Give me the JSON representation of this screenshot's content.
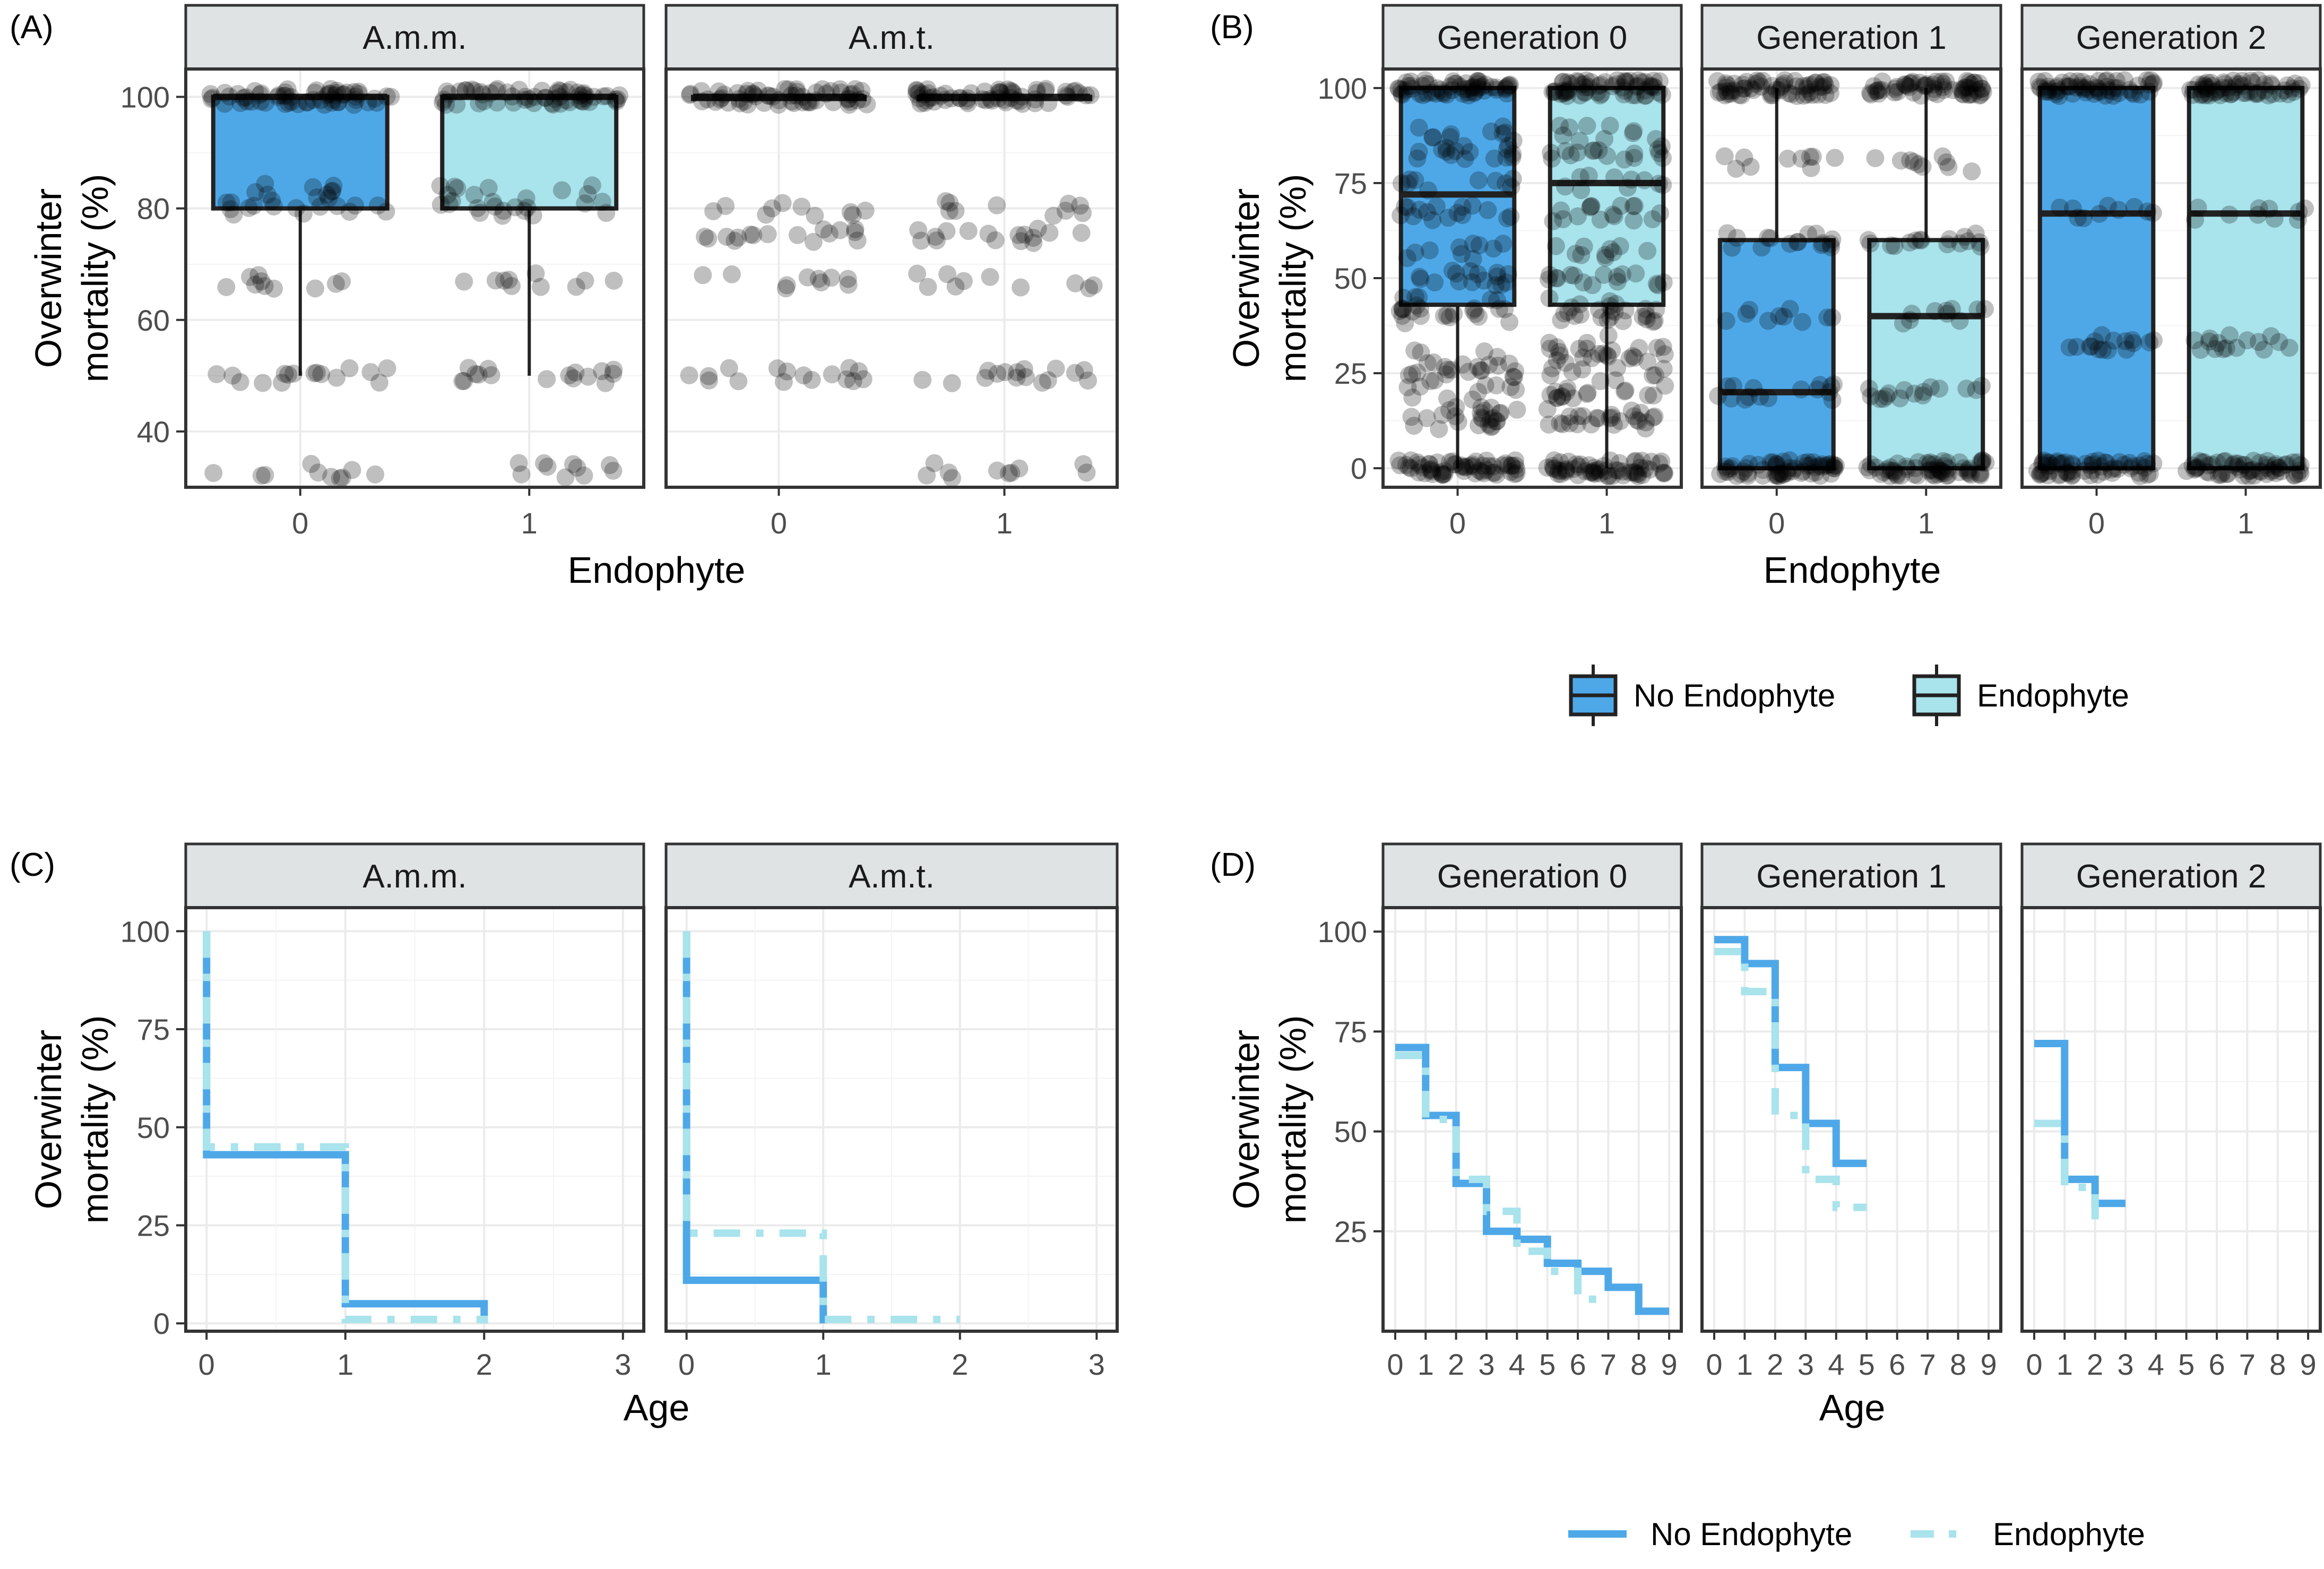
{
  "colors": {
    "no_endophyte": "#4EA8E8",
    "endophyte": "#A9E3EC",
    "strip_bg": "#DFE3E3",
    "points": "#000000",
    "grid": "#EBEBEB"
  },
  "legend": {
    "no_endophyte": "No Endophyte",
    "endophyte": "Endophyte"
  },
  "chart_data": [
    {
      "panel": "(A)",
      "type": "box",
      "xlabel": "Endophyte",
      "ylabel": "Overwinter mortality (%)",
      "ylim": [
        30,
        105
      ],
      "yticks": [
        40,
        60,
        80,
        100
      ],
      "categories": [
        "0",
        "1"
      ],
      "facets": [
        {
          "label": "A.m.m.",
          "boxes": [
            {
              "x": "0",
              "min": 50,
              "q1": 80,
              "median": 100,
              "q3": 100,
              "max": 100
            },
            {
              "x": "1",
              "min": 50,
              "q1": 80,
              "median": 100,
              "q3": 100,
              "max": 100
            }
          ],
          "point_levels": [
            {
              "x": "0",
              "levels": [
                100,
                83,
                80,
                67,
                50,
                33
              ]
            },
            {
              "x": "1",
              "levels": [
                100,
                83,
                80,
                67,
                50,
                33
              ]
            }
          ]
        },
        {
          "label": "A.m.t.",
          "boxes": [
            {
              "x": "0",
              "min": 100,
              "q1": 100,
              "median": 100,
              "q3": 100,
              "max": 100
            },
            {
              "x": "1",
              "min": 100,
              "q1": 100,
              "median": 100,
              "q3": 100,
              "max": 100
            }
          ],
          "point_levels": [
            {
              "x": "0",
              "levels": [
                100,
                80,
                75,
                67,
                50
              ]
            },
            {
              "x": "1",
              "levels": [
                100,
                80,
                75,
                67,
                50,
                33
              ]
            }
          ]
        }
      ]
    },
    {
      "panel": "(B)",
      "type": "box",
      "xlabel": "Endophyte",
      "ylabel": "Overwinter mortality (%)",
      "ylim": [
        -5,
        105
      ],
      "yticks": [
        0,
        25,
        50,
        75,
        100
      ],
      "categories": [
        "0",
        "1"
      ],
      "facets": [
        {
          "label": "Generation 0",
          "boxes": [
            {
              "x": "0",
              "min": 0,
              "q1": 43,
              "median": 72,
              "q3": 100,
              "max": 100
            },
            {
              "x": "1",
              "min": 0,
              "q1": 43,
              "median": 75,
              "q3": 100,
              "max": 100
            }
          ],
          "point_levels": [
            {
              "x": "0",
              "levels": [
                100,
                88,
                83,
                75,
                67,
                57,
                50,
                43,
                40,
                29,
                25,
                20,
                14,
                12,
                0
              ]
            },
            {
              "x": "1",
              "levels": [
                100,
                88,
                83,
                75,
                67,
                57,
                50,
                43,
                40,
                33,
                29,
                25,
                20,
                14,
                12,
                0
              ]
            }
          ]
        },
        {
          "label": "Generation 1",
          "boxes": [
            {
              "x": "0",
              "min": 0,
              "q1": 0,
              "median": 20,
              "q3": 60,
              "max": 100
            },
            {
              "x": "1",
              "min": 0,
              "q1": 0,
              "median": 40,
              "q3": 60,
              "max": 100
            }
          ],
          "point_levels": [
            {
              "x": "0",
              "levels": [
                100,
                80,
                60,
                40,
                20,
                0
              ]
            },
            {
              "x": "1",
              "levels": [
                100,
                80,
                60,
                40,
                20,
                0
              ]
            }
          ]
        },
        {
          "label": "Generation 2",
          "boxes": [
            {
              "x": "0",
              "min": 0,
              "q1": 0,
              "median": 67,
              "q3": 100,
              "max": 100
            },
            {
              "x": "1",
              "min": 0,
              "q1": 0,
              "median": 67,
              "q3": 100,
              "max": 100
            }
          ],
          "point_levels": [
            {
              "x": "0",
              "levels": [
                100,
                67,
                33,
                0
              ]
            },
            {
              "x": "1",
              "levels": [
                100,
                67,
                33,
                0
              ]
            }
          ]
        }
      ]
    },
    {
      "panel": "(C)",
      "type": "step-line",
      "xlabel": "Age",
      "ylabel": "Overwinter mortality (%)",
      "xlim": [
        -0.15,
        3.15
      ],
      "xticks": [
        0,
        1,
        2,
        3
      ],
      "ylim": [
        -2,
        106
      ],
      "yticks": [
        0,
        25,
        50,
        75,
        100
      ],
      "facets": [
        {
          "label": "A.m.m.",
          "series": [
            {
              "group": "no_endophyte",
              "x": [
                0,
                0,
                1,
                1,
                2,
                2
              ],
              "y": [
                100,
                43,
                43,
                5,
                5,
                0
              ]
            },
            {
              "group": "endophyte",
              "x": [
                0,
                0,
                1,
                1,
                2,
                2
              ],
              "y": [
                100,
                45,
                45,
                1,
                1,
                0
              ]
            }
          ]
        },
        {
          "label": "A.m.t.",
          "series": [
            {
              "group": "no_endophyte",
              "x": [
                0,
                0,
                1,
                1
              ],
              "y": [
                100,
                11,
                11,
                0
              ]
            },
            {
              "group": "endophyte",
              "x": [
                0,
                0,
                1,
                1,
                2
              ],
              "y": [
                100,
                23,
                23,
                1,
                1
              ]
            }
          ]
        }
      ]
    },
    {
      "panel": "(D)",
      "type": "step-line",
      "xlabel": "Age",
      "ylabel": "Overwinter mortality (%)",
      "xlim": [
        -0.4,
        9.4
      ],
      "xticks": [
        0,
        1,
        2,
        3,
        4,
        5,
        6,
        7,
        8,
        9
      ],
      "ylim": [
        0,
        106
      ],
      "yticks": [
        25,
        50,
        75,
        100
      ],
      "facets": [
        {
          "label": "Generation 0",
          "series": [
            {
              "group": "no_endophyte",
              "x": [
                0,
                1,
                1,
                2,
                2,
                3,
                3,
                4,
                4,
                5,
                5,
                6,
                6,
                7,
                7,
                8,
                8,
                9
              ],
              "y": [
                71,
                71,
                54,
                54,
                37,
                37,
                25,
                25,
                23,
                23,
                17,
                17,
                15,
                15,
                11,
                11,
                5,
                5
              ]
            },
            {
              "group": "endophyte",
              "x": [
                0,
                1,
                1,
                2,
                2,
                3,
                3,
                4,
                4,
                5,
                5,
                6,
                6,
                7
              ],
              "y": [
                69,
                69,
                53,
                53,
                38,
                38,
                30,
                30,
                20,
                20,
                15,
                15,
                8,
                8
              ]
            }
          ]
        },
        {
          "label": "Generation 1",
          "series": [
            {
              "group": "no_endophyte",
              "x": [
                0,
                1,
                1,
                2,
                2,
                3,
                3,
                4,
                4,
                5
              ],
              "y": [
                98,
                98,
                92,
                92,
                66,
                66,
                52,
                52,
                42,
                42
              ]
            },
            {
              "group": "endophyte",
              "x": [
                0,
                1,
                1,
                2,
                2,
                3,
                3,
                4,
                4,
                5
              ],
              "y": [
                95,
                95,
                85,
                85,
                54,
                54,
                38,
                38,
                31,
                31
              ]
            }
          ]
        },
        {
          "label": "Generation 2",
          "series": [
            {
              "group": "no_endophyte",
              "x": [
                0,
                1,
                1,
                2,
                2,
                3
              ],
              "y": [
                72,
                72,
                38,
                38,
                32,
                32
              ]
            },
            {
              "group": "endophyte",
              "x": [
                0,
                1,
                1,
                2,
                2
              ],
              "y": [
                52,
                52,
                36,
                36,
                28
              ]
            }
          ]
        }
      ]
    }
  ]
}
